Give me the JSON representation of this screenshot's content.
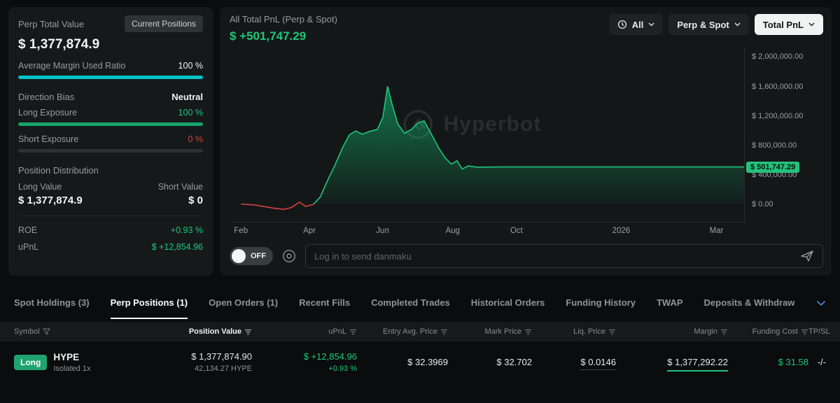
{
  "colors": {
    "green": "#1ec77c",
    "red": "#d94040",
    "cyan": "#00c4c7",
    "chip_green": "#25c17c",
    "badge_green": "#1fa36f"
  },
  "left_panel": {
    "title": "Perp Total Value",
    "current_positions_button": "Current Positions",
    "total_value": "$ 1,377,874.9",
    "avg_margin": {
      "label": "Average Margin Used Ratio",
      "value": "100 %",
      "percent": 100
    },
    "direction_bias": {
      "label": "Direction Bias",
      "value": "Neutral"
    },
    "long_exposure": {
      "label": "Long Exposure",
      "value": "100 %",
      "percent": 100
    },
    "short_exposure": {
      "label": "Short Exposure",
      "value": "0 %",
      "percent": 0
    },
    "position_distribution": {
      "title": "Position Distribution",
      "long_label": "Long Value",
      "short_label": "Short Value",
      "long_value": "$ 1,377,874.9",
      "short_value": "$ 0"
    },
    "roe": {
      "label": "ROE",
      "value": "+0.93 %"
    },
    "upnl": {
      "label": "uPnL",
      "value": "$ +12,854.96"
    }
  },
  "chart_panel": {
    "title": "All Total PnL (Perp & Spot)",
    "value": "$ +501,747.29",
    "filter_time": "All",
    "filter_scope": "Perp & Spot",
    "filter_metric": "Total PnL",
    "watermark": "Hyperbot"
  },
  "chart_data": {
    "type": "area",
    "title": "All Total PnL (Perp & Spot)",
    "ylim": [
      0,
      2000000
    ],
    "grid": false,
    "legend": "none",
    "y_ticks": [
      {
        "label": "$ 2,000,000.00",
        "value": 2000000
      },
      {
        "label": "$ 1,600,000.00",
        "value": 1600000
      },
      {
        "label": "$ 1,200,000.00",
        "value": 1200000
      },
      {
        "label": "$ 800,000.00",
        "value": 800000
      },
      {
        "label": "$ 400,000.00",
        "value": 400000
      },
      {
        "label": "$ 0.00",
        "value": 0
      }
    ],
    "current": {
      "label": "$ 501,747.29",
      "value": 501747
    },
    "x_ticks": [
      {
        "label": "Feb",
        "f": 0.022
      },
      {
        "label": "Apr",
        "f": 0.155
      },
      {
        "label": "Jun",
        "f": 0.297
      },
      {
        "label": "Aug",
        "f": 0.433
      },
      {
        "label": "Oct",
        "f": 0.557
      },
      {
        "label": "2026",
        "f": 0.76
      },
      {
        "label": "Mar",
        "f": 0.945
      }
    ],
    "red_until_index": 7,
    "points": [
      [
        0.022,
        -5000
      ],
      [
        0.05,
        -18000
      ],
      [
        0.085,
        -60000
      ],
      [
        0.105,
        -78000
      ],
      [
        0.12,
        -52000
      ],
      [
        0.136,
        22000
      ],
      [
        0.148,
        -38000
      ],
      [
        0.163,
        -8000
      ],
      [
        0.176,
        90000
      ],
      [
        0.19,
        310000
      ],
      [
        0.205,
        530000
      ],
      [
        0.22,
        770000
      ],
      [
        0.233,
        940000
      ],
      [
        0.245,
        990000
      ],
      [
        0.258,
        948000
      ],
      [
        0.272,
        985000
      ],
      [
        0.287,
        1012000
      ],
      [
        0.298,
        1180000
      ],
      [
        0.307,
        1600000
      ],
      [
        0.316,
        1350000
      ],
      [
        0.327,
        1085000
      ],
      [
        0.34,
        962000
      ],
      [
        0.353,
        1010000
      ],
      [
        0.366,
        1100000
      ],
      [
        0.378,
        1130000
      ],
      [
        0.392,
        950000
      ],
      [
        0.406,
        765000
      ],
      [
        0.419,
        625000
      ],
      [
        0.431,
        538000
      ],
      [
        0.442,
        585000
      ],
      [
        0.452,
        472000
      ],
      [
        0.464,
        515000
      ],
      [
        0.48,
        498000
      ],
      [
        0.53,
        501747
      ],
      [
        1.0,
        501747
      ]
    ]
  },
  "danmaku": {
    "toggle_label": "OFF",
    "placeholder": "Log in to send danmaku"
  },
  "tabs": {
    "items": [
      {
        "label": "Spot Holdings (3)"
      },
      {
        "label": "Perp Positions (1)"
      },
      {
        "label": "Open Orders (1)"
      },
      {
        "label": "Recent Fills"
      },
      {
        "label": "Completed Trades"
      },
      {
        "label": "Historical Orders"
      },
      {
        "label": "Funding History"
      },
      {
        "label": "TWAP"
      },
      {
        "label": "Deposits & Withdraw"
      }
    ]
  },
  "positions_table": {
    "headers": [
      "Symbol",
      "Position Value",
      "uPnL",
      "Entry Avg. Price",
      "Mark Price",
      "Liq. Price",
      "Margin",
      "Funding Cost",
      "TP/SL"
    ],
    "row": {
      "side": "Long",
      "symbol": "HYPE",
      "leverage": "Isolated 1x",
      "position_value": "$ 1,377,874.90",
      "position_size": "42,134.27 HYPE",
      "upnl": "$ +12,854.96",
      "upnl_pct": "+0.93 %",
      "entry_avg_price": "$ 32.3969",
      "mark_price": "$ 32.702",
      "liq_price": "$ 0.0146",
      "margin": "$ 1,377,292.22",
      "funding_cost": "$ 31.58",
      "tpsl": "-/-"
    }
  }
}
